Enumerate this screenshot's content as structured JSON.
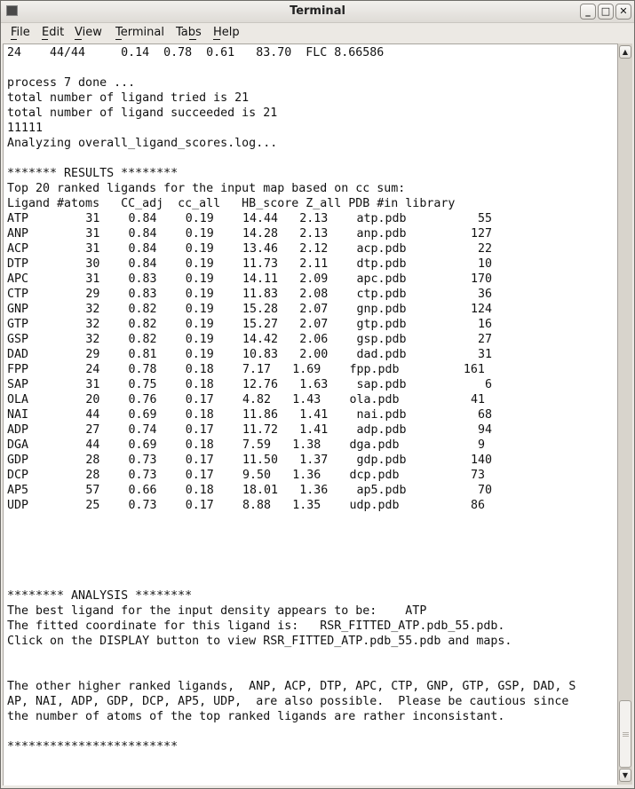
{
  "window": {
    "title": "Terminal",
    "icon": "terminal-icon"
  },
  "menu": [
    {
      "label": "File",
      "mnemonic": "F",
      "rest": "ile"
    },
    {
      "label": "Edit",
      "mnemonic": "E",
      "rest": "dit"
    },
    {
      "label": "View",
      "mnemonic": "V",
      "rest": "iew"
    },
    {
      "label": "Terminal",
      "mnemonic": "T",
      "rest": "erminal"
    },
    {
      "label": "Tabs",
      "pre": "Ta",
      "mnemonic": "b",
      "rest": "s"
    },
    {
      "label": "Help",
      "mnemonic": "H",
      "rest": "elp"
    }
  ],
  "output": {
    "top_line": "24    44/44     0.14  0.78  0.61   83.70  FLC 8.66586",
    "log_lines": [
      "process 7 done ...",
      "total number of ligand tried is 21",
      "total number of ligand succeeded is 21",
      "11111",
      "Analyzing overall_ligand_scores.log..."
    ],
    "results_header": "******* RESULTS ********",
    "results_intro": "Top 20 ranked ligands for the input map based on cc sum:",
    "table_header": "Ligand #atoms   CC_adj  cc_all   HB_score Z_all PDB #in library",
    "rows": [
      {
        "ligand": "ATP",
        "atoms": "31",
        "cc_adj": "0.84",
        "cc_all": "0.19",
        "hb_score": "14.44",
        "z_all": "2.13",
        "pdb": "atp.pdb",
        "in_library": "55"
      },
      {
        "ligand": "ANP",
        "atoms": "31",
        "cc_adj": "0.84",
        "cc_all": "0.19",
        "hb_score": "14.28",
        "z_all": "2.13",
        "pdb": "anp.pdb",
        "in_library": "127"
      },
      {
        "ligand": "ACP",
        "atoms": "31",
        "cc_adj": "0.84",
        "cc_all": "0.19",
        "hb_score": "13.46",
        "z_all": "2.12",
        "pdb": "acp.pdb",
        "in_library": "22"
      },
      {
        "ligand": "DTP",
        "atoms": "30",
        "cc_adj": "0.84",
        "cc_all": "0.19",
        "hb_score": "11.73",
        "z_all": "2.11",
        "pdb": "dtp.pdb",
        "in_library": "10"
      },
      {
        "ligand": "APC",
        "atoms": "31",
        "cc_adj": "0.83",
        "cc_all": "0.19",
        "hb_score": "14.11",
        "z_all": "2.09",
        "pdb": "apc.pdb",
        "in_library": "170"
      },
      {
        "ligand": "CTP",
        "atoms": "29",
        "cc_adj": "0.83",
        "cc_all": "0.19",
        "hb_score": "11.83",
        "z_all": "2.08",
        "pdb": "ctp.pdb",
        "in_library": "36"
      },
      {
        "ligand": "GNP",
        "atoms": "32",
        "cc_adj": "0.82",
        "cc_all": "0.19",
        "hb_score": "15.28",
        "z_all": "2.07",
        "pdb": "gnp.pdb",
        "in_library": "124"
      },
      {
        "ligand": "GTP",
        "atoms": "32",
        "cc_adj": "0.82",
        "cc_all": "0.19",
        "hb_score": "15.27",
        "z_all": "2.07",
        "pdb": "gtp.pdb",
        "in_library": "16"
      },
      {
        "ligand": "GSP",
        "atoms": "32",
        "cc_adj": "0.82",
        "cc_all": "0.19",
        "hb_score": "14.42",
        "z_all": "2.06",
        "pdb": "gsp.pdb",
        "in_library": "27"
      },
      {
        "ligand": "DAD",
        "atoms": "29",
        "cc_adj": "0.81",
        "cc_all": "0.19",
        "hb_score": "10.83",
        "z_all": "2.00",
        "pdb": "dad.pdb",
        "in_library": "31"
      },
      {
        "ligand": "FPP",
        "atoms": "24",
        "cc_adj": "0.78",
        "cc_all": "0.18",
        "hb_score": "7.17",
        "z_all": "1.69",
        "pdb": "fpp.pdb",
        "in_library": "161"
      },
      {
        "ligand": "SAP",
        "atoms": "31",
        "cc_adj": "0.75",
        "cc_all": "0.18",
        "hb_score": "12.76",
        "z_all": "1.63",
        "pdb": "sap.pdb",
        "in_library": "6"
      },
      {
        "ligand": "OLA",
        "atoms": "20",
        "cc_adj": "0.76",
        "cc_all": "0.17",
        "hb_score": "4.82",
        "z_all": "1.43",
        "pdb": "ola.pdb",
        "in_library": "41"
      },
      {
        "ligand": "NAI",
        "atoms": "44",
        "cc_adj": "0.69",
        "cc_all": "0.18",
        "hb_score": "11.86",
        "z_all": "1.41",
        "pdb": "nai.pdb",
        "in_library": "68"
      },
      {
        "ligand": "ADP",
        "atoms": "27",
        "cc_adj": "0.74",
        "cc_all": "0.17",
        "hb_score": "11.72",
        "z_all": "1.41",
        "pdb": "adp.pdb",
        "in_library": "94"
      },
      {
        "ligand": "DGA",
        "atoms": "44",
        "cc_adj": "0.69",
        "cc_all": "0.18",
        "hb_score": "7.59",
        "z_all": "1.38",
        "pdb": "dga.pdb",
        "in_library": "9"
      },
      {
        "ligand": "GDP",
        "atoms": "28",
        "cc_adj": "0.73",
        "cc_all": "0.17",
        "hb_score": "11.50",
        "z_all": "1.37",
        "pdb": "gdp.pdb",
        "in_library": "140"
      },
      {
        "ligand": "DCP",
        "atoms": "28",
        "cc_adj": "0.73",
        "cc_all": "0.17",
        "hb_score": "9.50",
        "z_all": "1.36",
        "pdb": "dcp.pdb",
        "in_library": "73"
      },
      {
        "ligand": "AP5",
        "atoms": "57",
        "cc_adj": "0.66",
        "cc_all": "0.18",
        "hb_score": "18.01",
        "z_all": "1.36",
        "pdb": "ap5.pdb",
        "in_library": "70"
      },
      {
        "ligand": "UDP",
        "atoms": "25",
        "cc_adj": "0.73",
        "cc_all": "0.17",
        "hb_score": "8.88",
        "z_all": "1.35",
        "pdb": "udp.pdb",
        "in_library": "86"
      }
    ],
    "analysis_header": "******** ANALYSIS ********",
    "analysis_lines": [
      "The best ligand for the input density appears to be:    ATP",
      "The fitted coordinate for this ligand is:   RSR_FITTED_ATP.pdb_55.pdb.",
      "Click on the DISPLAY button to view RSR_FITTED_ATP.pdb_55.pdb and maps."
    ],
    "other_lines": [
      "The other higher ranked ligands,  ANP, ACP, DTP, APC, CTP, GNP, GTP, GSP, DAD, S",
      "AP, NAI, ADP, GDP, DCP, AP5, UDP,  are also possible.  Please be cautious since",
      "the number of atoms of the top ranked ligands are rather inconsistant."
    ],
    "footer_stars": "************************"
  }
}
